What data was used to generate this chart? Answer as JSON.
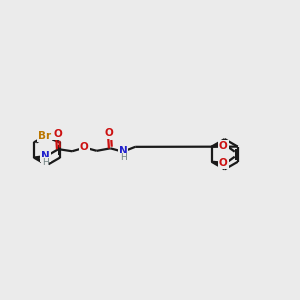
{
  "background_color": "#ebebeb",
  "bond_color": "#1a1a1a",
  "nitrogen_color": "#2020cc",
  "oxygen_color": "#cc1010",
  "bromine_color": "#bb7700",
  "hydrogen_color": "#708080",
  "line_width": 1.6,
  "figsize": [
    3.0,
    3.0
  ],
  "dpi": 100,
  "xlim": [
    0,
    14
  ],
  "ylim": [
    2,
    9
  ]
}
